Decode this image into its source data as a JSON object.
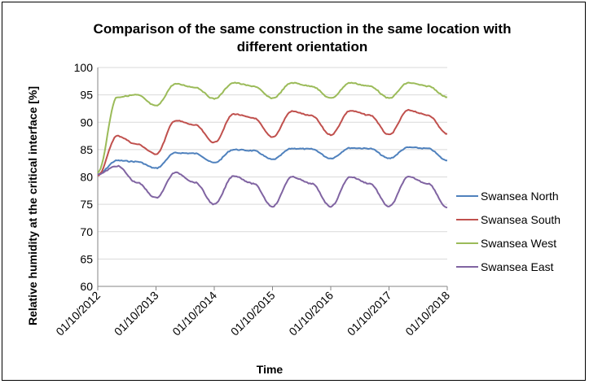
{
  "colors": {
    "north": "#4F81BD",
    "south": "#C0504D",
    "west": "#9BBB59",
    "east": "#8064A2",
    "grid": "#D9D9D9",
    "axis": "#868686"
  },
  "chart_data": {
    "type": "line",
    "title_line1": "Comparison of the same construction in the same location with",
    "title_line2": "different orientation",
    "xlabel": "Time",
    "ylabel": "Relative humidity at the critical interface [%]",
    "ylim": [
      60,
      100
    ],
    "yticks": [
      60,
      65,
      70,
      75,
      80,
      85,
      90,
      95,
      100
    ],
    "x_tick_labels": [
      "01/10/2012",
      "01/10/2013",
      "01/10/2014",
      "01/10/2015",
      "01/10/2016",
      "01/10/2017",
      "01/10/2018"
    ],
    "grid": "horizontal",
    "legend_position": "right",
    "x": [
      "01/10/2012",
      "01/02/2013",
      "01/06/2013",
      "01/10/2013",
      "01/02/2014",
      "01/06/2014",
      "01/10/2014",
      "01/02/2015",
      "01/06/2015",
      "01/10/2015",
      "01/02/2016",
      "01/06/2016",
      "01/10/2016",
      "01/02/2017",
      "01/06/2017",
      "01/10/2017",
      "01/02/2018",
      "01/06/2018",
      "01/10/2018"
    ],
    "series": [
      {
        "name": "Swansea North",
        "color_key": "north",
        "values": [
          80.5,
          83.0,
          82.8,
          81.6,
          84.4,
          84.3,
          82.6,
          85.0,
          84.8,
          83.2,
          85.2,
          85.1,
          83.4,
          85.3,
          85.2,
          83.4,
          85.4,
          85.2,
          83.0
        ]
      },
      {
        "name": "Swansea South",
        "color_key": "south",
        "values": [
          80.3,
          87.5,
          86.0,
          84.2,
          90.3,
          89.5,
          86.3,
          91.5,
          90.8,
          87.3,
          92.0,
          91.2,
          87.7,
          92.1,
          91.3,
          87.7,
          92.2,
          91.3,
          87.9
        ]
      },
      {
        "name": "Swansea West",
        "color_key": "west",
        "values": [
          80.8,
          94.6,
          95.0,
          93.0,
          97.0,
          96.4,
          94.3,
          97.2,
          96.6,
          94.4,
          97.2,
          96.6,
          94.4,
          97.2,
          96.6,
          94.4,
          97.2,
          96.6,
          94.6
        ]
      },
      {
        "name": "Swansea East",
        "color_key": "east",
        "values": [
          80.5,
          82.0,
          79.0,
          76.2,
          80.8,
          79.0,
          75.0,
          80.2,
          78.8,
          74.6,
          80.0,
          78.8,
          74.6,
          80.0,
          78.8,
          74.6,
          80.0,
          78.8,
          74.4
        ]
      }
    ]
  }
}
